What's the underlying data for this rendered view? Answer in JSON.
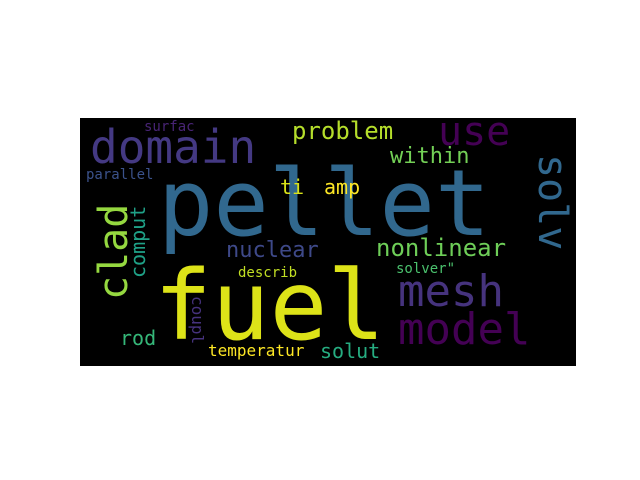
{
  "words": [
    {
      "key": "pellet",
      "text": "pellet",
      "color": "#31688e"
    },
    {
      "key": "fuel",
      "text": "fuel",
      "color": "#dde318"
    },
    {
      "key": "domain",
      "text": "domain",
      "color": "#443983"
    },
    {
      "key": "mesh",
      "text": "mesh",
      "color": "#46337e"
    },
    {
      "key": "model",
      "text": "model",
      "color": "#440154"
    },
    {
      "key": "use",
      "text": "use",
      "color": "#440154"
    },
    {
      "key": "solv",
      "text": "solv",
      "color": "#31688e"
    },
    {
      "key": "clad",
      "text": "clad",
      "color": "#95d840"
    },
    {
      "key": "problem",
      "text": "problem",
      "color": "#b5de2b"
    },
    {
      "key": "within",
      "text": "within",
      "color": "#73d056"
    },
    {
      "key": "nonlinear",
      "text": "nonlinear",
      "color": "#6ece58"
    },
    {
      "key": "nuclear",
      "text": "nuclear",
      "color": "#3e4989"
    },
    {
      "key": "ti",
      "text": "ti",
      "color": "#d8e219"
    },
    {
      "key": "amp",
      "text": "amp",
      "color": "#fde725"
    },
    {
      "key": "comput",
      "text": "comput",
      "color": "#1fa187"
    },
    {
      "key": "rod",
      "text": "rod",
      "color": "#35b779"
    },
    {
      "key": "solut",
      "text": "solut",
      "color": "#26ad81"
    },
    {
      "key": "temperatur",
      "text": "temperatur",
      "color": "#fde725"
    },
    {
      "key": "coupl",
      "text": "coupl",
      "color": "#46327e"
    },
    {
      "key": "describ",
      "text": "describ",
      "color": "#c2df23"
    },
    {
      "key": "solver",
      "text": "solver\"",
      "color": "#4ac16d"
    },
    {
      "key": "parallel",
      "text": "parallel",
      "color": "#3b528b"
    },
    {
      "key": "surfac",
      "text": "surfac",
      "color": "#482475"
    }
  ]
}
